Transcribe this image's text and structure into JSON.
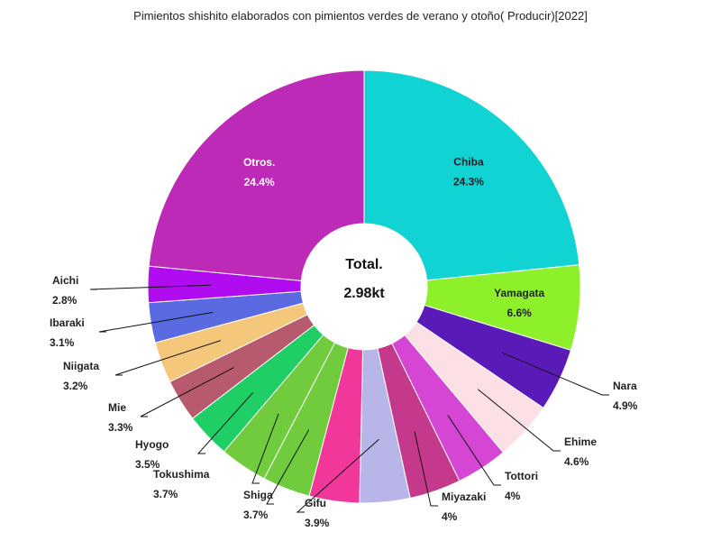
{
  "chart_data": {
    "type": "pie",
    "title": "Pimientos shishito elaborados con pimientos verdes de verano y otoño( Producir)[2022]",
    "center_label": "Total.",
    "center_value": "2.98kt",
    "slices": [
      {
        "name": "Chiba",
        "value": 24.3,
        "value_label": "24.3%",
        "color": "#12d3d3",
        "label_color": "#222222",
        "inside": true
      },
      {
        "name": "Yamagata",
        "value": 6.6,
        "value_label": "6.6%",
        "color": "#8ef02b",
        "label_color": "#222222",
        "inside": true
      },
      {
        "name": "Nara",
        "value": 4.9,
        "value_label": "4.9%",
        "color": "#5a1ab8",
        "label_color": "#222222",
        "inside": false
      },
      {
        "name": "Ehime",
        "value": 4.6,
        "value_label": "4.6%",
        "color": "#fde0e6",
        "label_color": "#222222",
        "inside": false
      },
      {
        "name": "Tottori",
        "value": 4.0,
        "value_label": "4%",
        "color": "#d546d5",
        "label_color": "#222222",
        "inside": false
      },
      {
        "name": "Miyazaki",
        "value": 4.0,
        "value_label": "4%",
        "color": "#c4398b",
        "label_color": "#222222",
        "inside": false
      },
      {
        "name": "Gifu",
        "value": 3.9,
        "value_label": "3.9%",
        "color": "#b8b6e8",
        "label_color": "#222222",
        "inside": false
      },
      {
        "name": "",
        "value": 3.9,
        "value_label": "",
        "color": "#f2379a",
        "label_color": "#222222",
        "inside": false
      },
      {
        "name": "Shiga",
        "value": 3.7,
        "value_label": "3.7%",
        "color": "#70cc3c",
        "label_color": "#222222",
        "inside": false
      },
      {
        "name": "Tokushima",
        "value": 3.7,
        "value_label": "3.7%",
        "color": "#1fcf66",
        "label_color": "#222222",
        "inside": false
      },
      {
        "name": "Hyogo",
        "value": 3.5,
        "value_label": "3.5%",
        "color": "#b85a6e",
        "label_color": "#222222",
        "inside": false
      },
      {
        "name": "Mie",
        "value": 3.3,
        "value_label": "3.3%",
        "color": "#f5c77a",
        "label_color": "#222222",
        "inside": false
      },
      {
        "name": "Niigata",
        "value": 3.2,
        "value_label": "3.2%",
        "color": "#5a6ae0",
        "label_color": "#222222",
        "inside": false
      },
      {
        "name": "Ibaraki",
        "value": 3.1,
        "value_label": "3.1%",
        "color": "#b10bf0",
        "label_color": "#222222",
        "inside": false
      },
      {
        "name": "Aichi",
        "value": 2.8,
        "value_label": "2.8%",
        "color": "#b10bf0",
        "label_color": "#222222",
        "inside": false
      },
      {
        "name": "Otros.",
        "value": 24.4,
        "value_label": "24.4%",
        "color": "#bd2ab8",
        "label_color": "#ffffff",
        "inside": true
      }
    ]
  }
}
